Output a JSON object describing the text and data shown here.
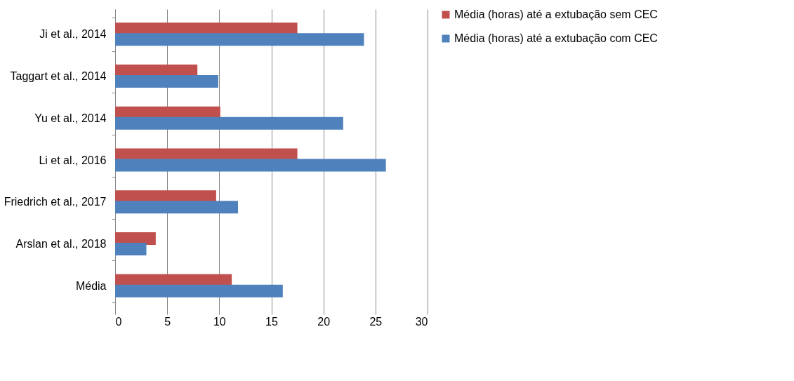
{
  "chart_data": {
    "type": "bar",
    "orientation": "horizontal",
    "categories": [
      "Ji et al., 2014",
      "Taggart et al., 2014",
      "Yu et al., 2014",
      "Li et al., 2016",
      "Friedrich et al., 2017",
      "Arslan et al., 2018",
      "Média"
    ],
    "series": [
      {
        "name": "Média (horas) até a extubação sem CEC",
        "color": "#c0504d",
        "values": [
          17.5,
          7.9,
          10.1,
          17.5,
          9.7,
          3.9,
          11.2
        ]
      },
      {
        "name": "Média (horas) até a extubação com CEC",
        "color": "#4f81bd",
        "values": [
          23.9,
          9.9,
          21.9,
          26.0,
          11.8,
          3.0,
          16.1
        ]
      }
    ],
    "xlim": [
      0,
      30
    ],
    "xticks": [
      0,
      5,
      10,
      15,
      20,
      25,
      30
    ],
    "grid": "x",
    "legend": "right"
  }
}
